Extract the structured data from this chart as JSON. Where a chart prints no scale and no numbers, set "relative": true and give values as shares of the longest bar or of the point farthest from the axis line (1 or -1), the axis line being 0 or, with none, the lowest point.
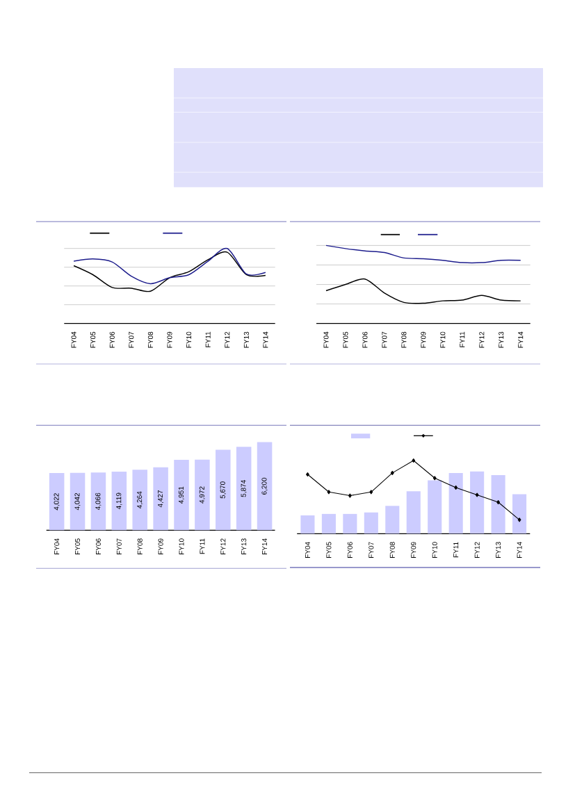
{
  "chart_data": [
    {
      "type": "line",
      "categories": [
        "FY04",
        "FY05",
        "FY06",
        "FY07",
        "FY08",
        "FY09",
        "FY10",
        "FY11",
        "FY12",
        "FY13",
        "FY14"
      ],
      "relative": true,
      "grid": "y",
      "series": [
        {
          "color": "#000000",
          "values": [
            0.77,
            0.65,
            0.48,
            0.47,
            0.43,
            0.61,
            0.69,
            0.85,
            0.95,
            0.65,
            0.64
          ]
        },
        {
          "color": "#1c1c8c",
          "values": [
            0.83,
            0.86,
            0.82,
            0.63,
            0.53,
            0.61,
            0.65,
            0.83,
            1,
            0.66,
            0.68
          ]
        }
      ]
    },
    {
      "type": "line",
      "categories": [
        "FY04",
        "FY05",
        "FY06",
        "FY07",
        "FY08",
        "FY09",
        "FY10",
        "FY11",
        "FY12",
        "FY13",
        "FY14"
      ],
      "relative": true,
      "grid": "y",
      "series": [
        {
          "color": "#000000",
          "values": [
            0.42,
            0.5,
            0.57,
            0.39,
            0.27,
            0.26,
            0.29,
            0.3,
            0.36,
            0.3,
            0.29
          ]
        },
        {
          "color": "#1c1c8c",
          "values": [
            1,
            0.96,
            0.93,
            0.91,
            0.84,
            0.83,
            0.81,
            0.78,
            0.78,
            0.81,
            0.81
          ]
        }
      ]
    },
    {
      "type": "bar",
      "categories": [
        "FY04",
        "FY05",
        "FY06",
        "FY07",
        "FY08",
        "FY09",
        "FY10",
        "FY11",
        "FY12",
        "FY13",
        "FY14"
      ],
      "color": "#ccccff",
      "tick_labels": "x",
      "values": [
        4022,
        4042,
        4066,
        4119,
        4264,
        4427,
        4951,
        4972,
        5670,
        5874,
        6200
      ],
      "value_labels": [
        "4,022",
        "4,042",
        "4,066",
        "4,119",
        "4,264",
        "4,427",
        "4,951",
        "4,972",
        "5,670",
        "5,874",
        "6,200"
      ]
    },
    {
      "type": "bar",
      "categories": [
        "FY04",
        "FY05",
        "FY06",
        "FY07",
        "FY08",
        "FY09",
        "FY10",
        "FY11",
        "FY12",
        "FY13",
        "FY14"
      ],
      "relative": true,
      "series": [
        {
          "color": "#ccccff",
          "values": [
            0.25,
            0.27,
            0.27,
            0.29,
            0.38,
            0.58,
            0.73,
            0.83,
            0.85,
            0.8,
            0.54
          ]
        },
        {
          "type": "line",
          "color": "#000000",
          "marker": "diamond",
          "values": [
            0.81,
            0.57,
            0.52,
            0.57,
            0.83,
            1,
            0.76,
            0.63,
            0.53,
            0.43,
            0.19
          ]
        }
      ]
    }
  ]
}
